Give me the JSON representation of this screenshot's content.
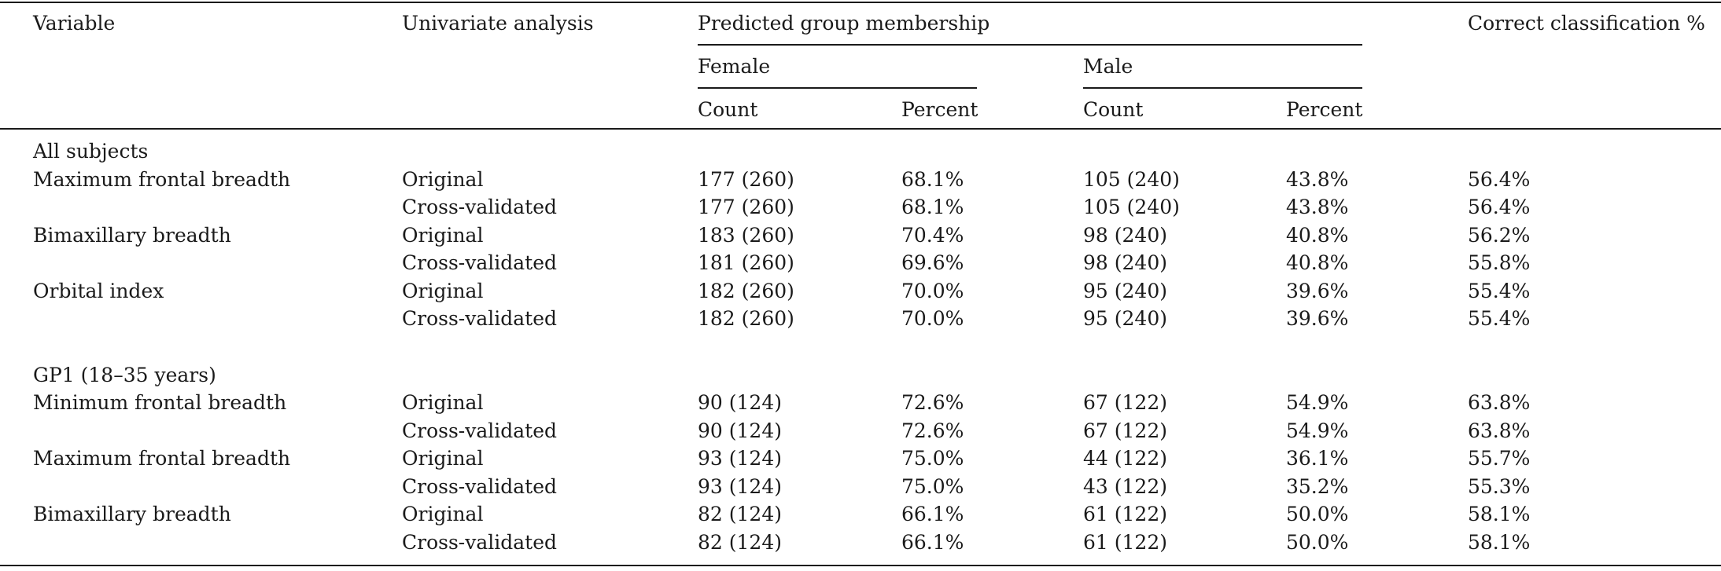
{
  "table": {
    "headers": {
      "variable": "Variable",
      "univariate": "Univariate analysis",
      "predicted": "Predicted group membership",
      "correct": "Correct classification %",
      "female": "Female",
      "male": "Male",
      "female_count": "Count",
      "female_percent": "Percent",
      "male_count": "Count",
      "male_percent": "Percent"
    },
    "sections": [
      {
        "title": "All subjects",
        "rows": [
          {
            "variable": "Maximum frontal breadth",
            "analysis": "Original",
            "female_count": "177 (260)",
            "female_percent": "68.1%",
            "male_count": "105 (240)",
            "male_percent": "43.8%",
            "correct": "56.4%"
          },
          {
            "variable": "",
            "analysis": "Cross-validated",
            "female_count": "177 (260)",
            "female_percent": "68.1%",
            "male_count": "105 (240)",
            "male_percent": "43.8%",
            "correct": "56.4%"
          },
          {
            "variable": "Bimaxillary breadth",
            "analysis": "Original",
            "female_count": "183 (260)",
            "female_percent": "70.4%",
            "male_count": "98 (240)",
            "male_percent": "40.8%",
            "correct": "56.2%"
          },
          {
            "variable": "",
            "analysis": "Cross-validated",
            "female_count": "181 (260)",
            "female_percent": "69.6%",
            "male_count": "98 (240)",
            "male_percent": "40.8%",
            "correct": "55.8%"
          },
          {
            "variable": "Orbital index",
            "analysis": "Original",
            "female_count": "182 (260)",
            "female_percent": "70.0%",
            "male_count": "95 (240)",
            "male_percent": "39.6%",
            "correct": "55.4%"
          },
          {
            "variable": "",
            "analysis": "Cross-validated",
            "female_count": "182 (260)",
            "female_percent": "70.0%",
            "male_count": "95 (240)",
            "male_percent": "39.6%",
            "correct": "55.4%"
          }
        ]
      },
      {
        "title": "GP1 (18–35 years)",
        "rows": [
          {
            "variable": "Minimum frontal breadth",
            "analysis": "Original",
            "female_count": "90 (124)",
            "female_percent": "72.6%",
            "male_count": "67 (122)",
            "male_percent": "54.9%",
            "correct": "63.8%"
          },
          {
            "variable": "",
            "analysis": "Cross-validated",
            "female_count": "90 (124)",
            "female_percent": "72.6%",
            "male_count": "67 (122)",
            "male_percent": "54.9%",
            "correct": "63.8%"
          },
          {
            "variable": "Maximum frontal breadth",
            "analysis": "Original",
            "female_count": "93 (124)",
            "female_percent": "75.0%",
            "male_count": "44 (122)",
            "male_percent": "36.1%",
            "correct": "55.7%"
          },
          {
            "variable": "",
            "analysis": "Cross-validated",
            "female_count": "93 (124)",
            "female_percent": "75.0%",
            "male_count": "43 (122)",
            "male_percent": "35.2%",
            "correct": "55.3%"
          },
          {
            "variable": "Bimaxillary breadth",
            "analysis": "Original",
            "female_count": "82 (124)",
            "female_percent": "66.1%",
            "male_count": "61 (122)",
            "male_percent": "50.0%",
            "correct": "58.1%"
          },
          {
            "variable": "",
            "analysis": "Cross-validated",
            "female_count": "82 (124)",
            "female_percent": "66.1%",
            "male_count": "61 (122)",
            "male_percent": "50.0%",
            "correct": "58.1%"
          }
        ]
      }
    ]
  }
}
